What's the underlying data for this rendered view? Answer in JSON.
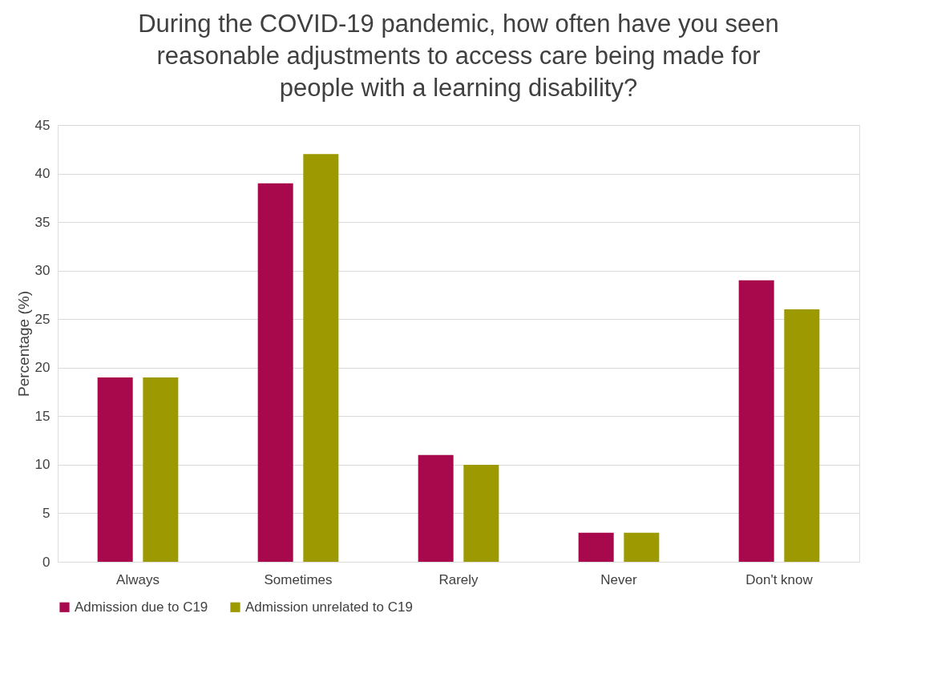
{
  "chart_data": {
    "type": "bar",
    "title": "During the COVID-19 pandemic, how often have you seen reasonable adjustments to access care being made for people with a learning disability?",
    "ylabel": "Percentage (%)",
    "categories": [
      "Always",
      "Sometimes",
      "Rarely",
      "Never",
      "Don't know"
    ],
    "series": [
      {
        "name": "Admission due to C19",
        "color": "#a8084c",
        "values": [
          19,
          39,
          11,
          3,
          29
        ]
      },
      {
        "name": "Admission unrelated to C19",
        "color": "#9c9a00",
        "values": [
          19,
          42,
          10,
          3,
          26
        ]
      }
    ],
    "ylim": [
      0,
      45
    ],
    "yticks": [
      0,
      5,
      10,
      15,
      20,
      25,
      30,
      35,
      40,
      45
    ],
    "grid": "y",
    "legend": "bottom"
  }
}
